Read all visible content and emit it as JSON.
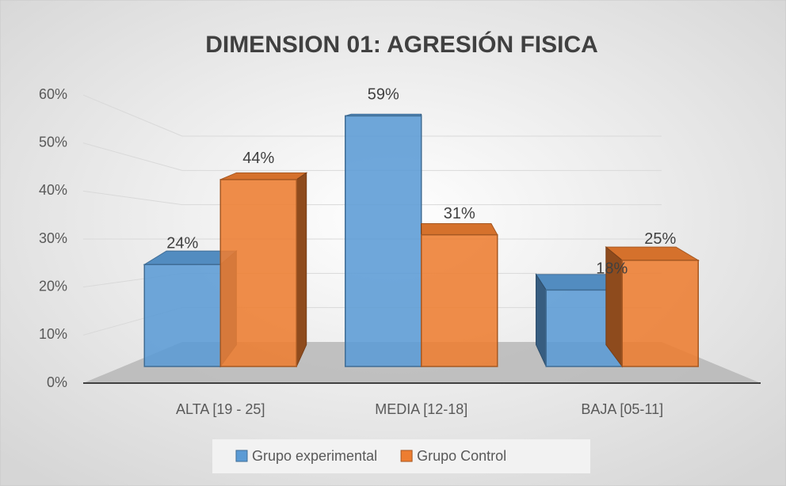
{
  "chart_data": {
    "type": "bar3d",
    "title": "DIMENSION 01: AGRESIÓN FISICA",
    "categories": [
      "ALTA [19 - 25]",
      "MEDIA [12-18]",
      "BAJA [05-11]"
    ],
    "series": [
      {
        "name": "Grupo experimental",
        "color": "#5b9bd5",
        "values": [
          24,
          59,
          18
        ],
        "value_labels": [
          "24%",
          "59%",
          "18%"
        ]
      },
      {
        "name": "Grupo Control",
        "color": "#ed7d31",
        "values": [
          44,
          31,
          25
        ],
        "value_labels": [
          "44%",
          "31%",
          "25%"
        ]
      }
    ],
    "ylim": [
      0,
      60
    ],
    "yticks": [
      {
        "value": 0,
        "label": "0%"
      },
      {
        "value": 10,
        "label": "10%"
      },
      {
        "value": 20,
        "label": "20%"
      },
      {
        "value": 30,
        "label": "30%"
      },
      {
        "value": 40,
        "label": "40%"
      },
      {
        "value": 50,
        "label": "50%"
      },
      {
        "value": 60,
        "label": "60%"
      }
    ],
    "grid": true,
    "legend": "bottom"
  }
}
